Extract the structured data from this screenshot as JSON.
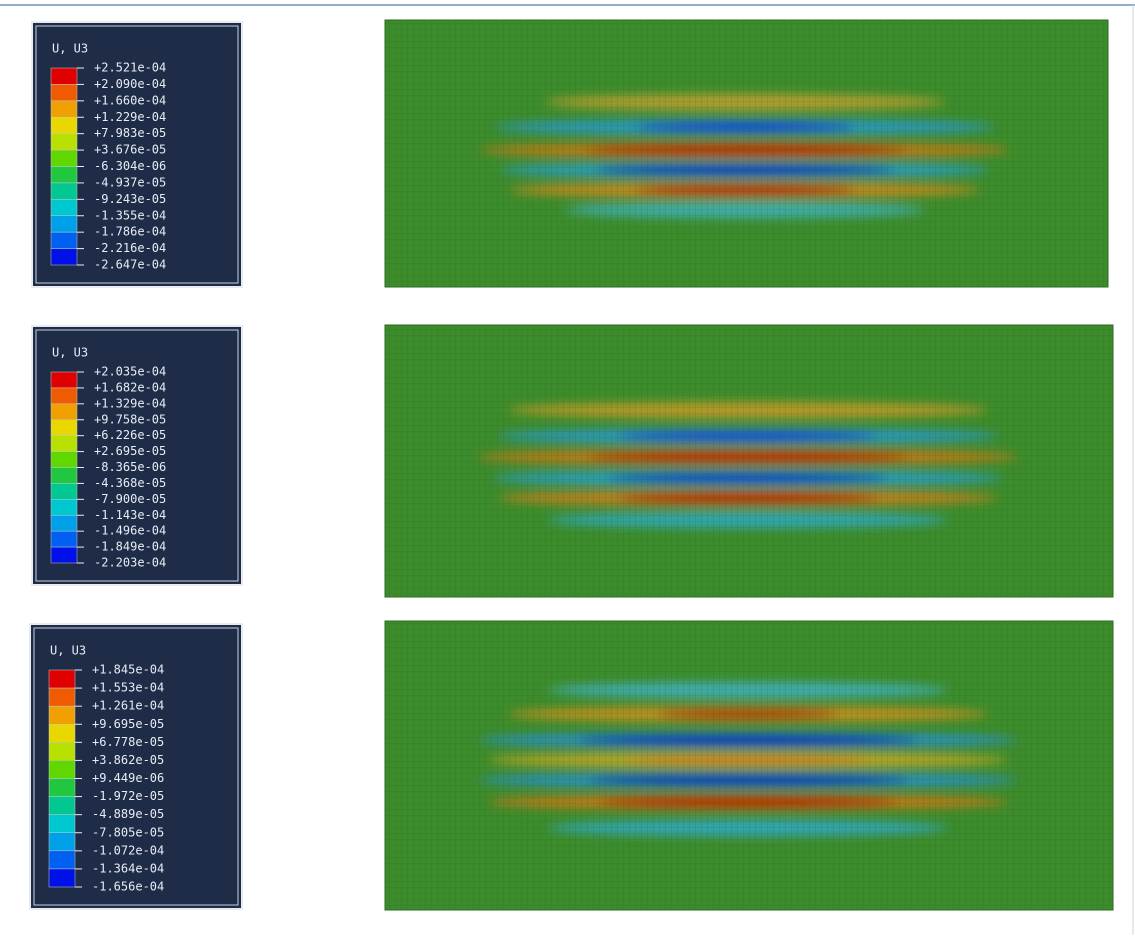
{
  "panels": [
    {
      "legend": {
        "title": "U, U3",
        "labels": [
          "+2.521e-04",
          "+2.090e-04",
          "+1.660e-04",
          "+1.229e-04",
          "+7.983e-05",
          "+3.676e-05",
          "-6.304e-06",
          "-4.937e-05",
          "-9.243e-05",
          "-1.355e-04",
          "-1.786e-04",
          "-2.216e-04",
          "-2.647e-04"
        ]
      }
    },
    {
      "legend": {
        "title": "U, U3",
        "labels": [
          "+2.035e-04",
          "+1.682e-04",
          "+1.329e-04",
          "+9.758e-05",
          "+6.226e-05",
          "+2.695e-05",
          "-8.365e-06",
          "-4.368e-05",
          "-7.900e-05",
          "-1.143e-04",
          "-1.496e-04",
          "-1.849e-04",
          "-2.203e-04"
        ]
      }
    },
    {
      "legend": {
        "title": "U, U3",
        "labels": [
          "+1.845e-04",
          "+1.553e-04",
          "+1.261e-04",
          "+9.695e-05",
          "+6.778e-05",
          "+3.862e-05",
          "+9.449e-06",
          "-1.972e-05",
          "-4.889e-05",
          "-7.805e-05",
          "-1.072e-04",
          "-1.364e-04",
          "-1.656e-04"
        ]
      }
    }
  ]
}
